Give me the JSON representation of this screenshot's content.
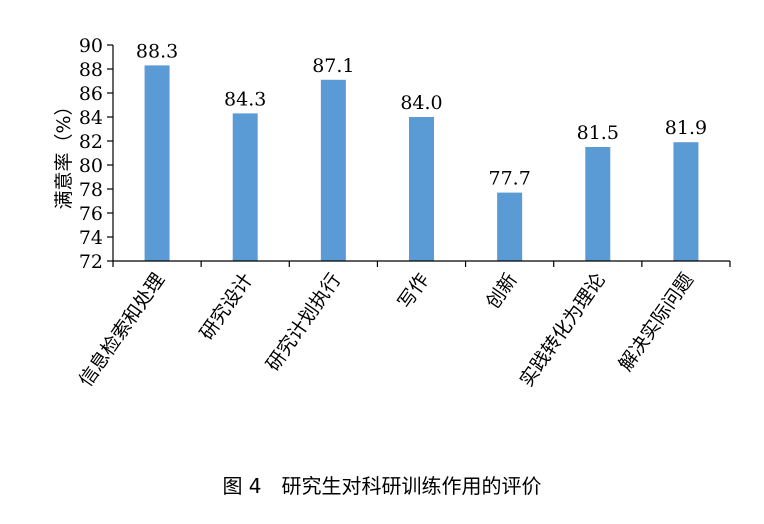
{
  "caption": "图 4　研究生对科研训练作用的评价",
  "chart_data": {
    "type": "bar",
    "categories": [
      "信息检索和处理",
      "研究设计",
      "研究计划执行",
      "写作",
      "创新",
      "实践转化为理论",
      "解决实际问题"
    ],
    "values": [
      88.3,
      84.3,
      87.1,
      84.0,
      77.7,
      81.5,
      81.9
    ],
    "value_labels": [
      "88.3",
      "84.3",
      "87.1",
      "84.0",
      "77.7",
      "81.5",
      "81.9"
    ],
    "ylabel": "满意率（%）",
    "xlabel": "",
    "ylim": [
      72,
      90
    ],
    "yticks": [
      72,
      74,
      76,
      78,
      80,
      82,
      84,
      86,
      88,
      90
    ],
    "bar_color": "#5b9bd5",
    "grid": false,
    "legend": "none"
  }
}
